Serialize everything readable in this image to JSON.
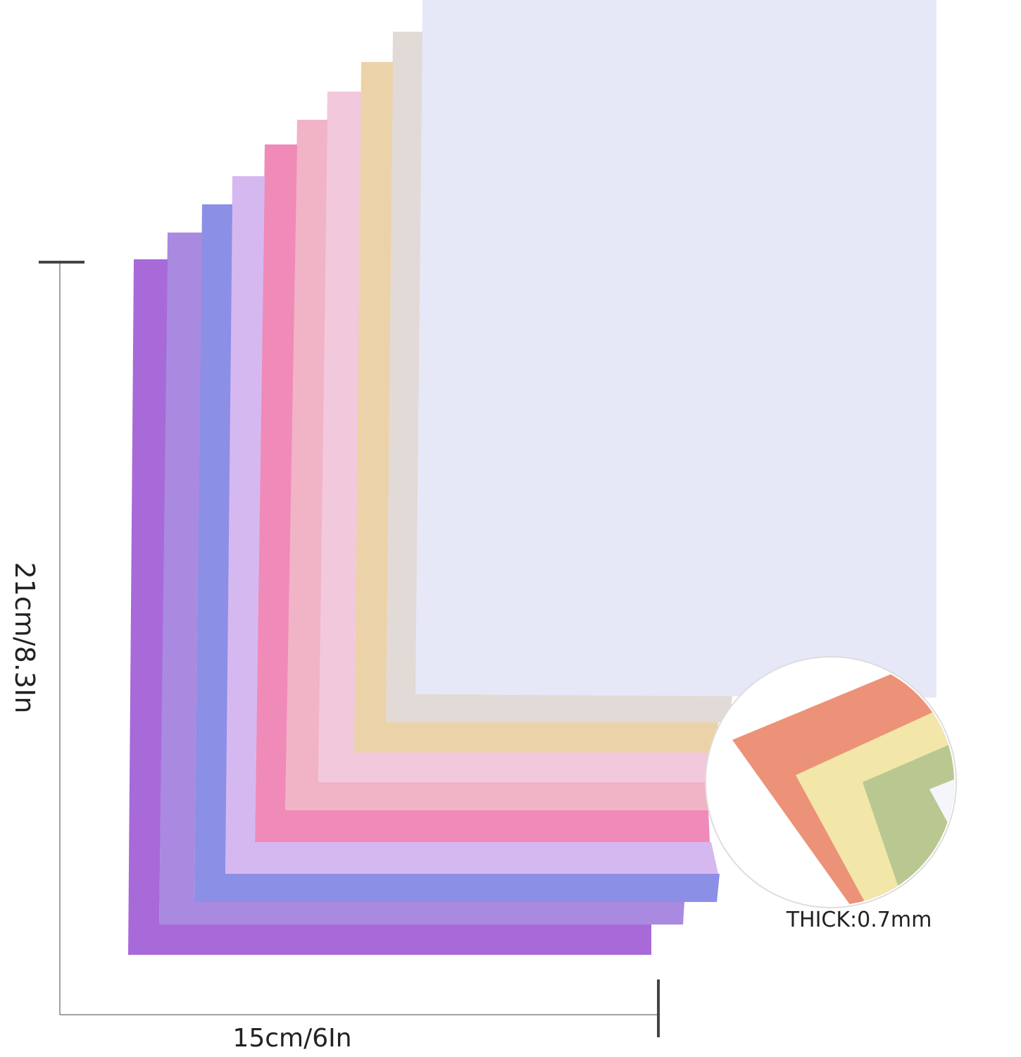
{
  "labels": {
    "height": "21cm/8.3In",
    "width": "15cm/6In",
    "thickness": "THICK:0.7mm"
  }
}
